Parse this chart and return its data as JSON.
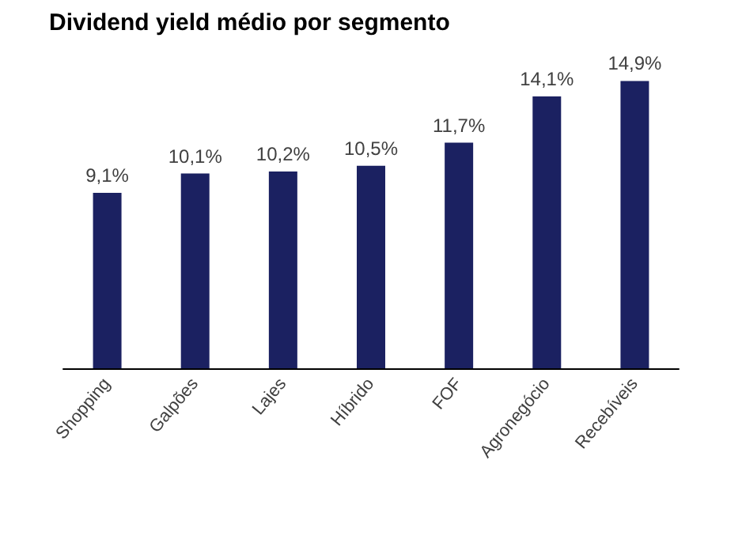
{
  "chart_data": {
    "type": "bar",
    "title": "Dividend yield médio por segmento",
    "categories": [
      "Shopping",
      "Galpões",
      "Lajes",
      "Híbrido",
      "FOF",
      "Agronegócio",
      "Recebíveis"
    ],
    "values": [
      9.1,
      10.1,
      10.2,
      10.5,
      11.7,
      14.1,
      14.9
    ],
    "value_labels": [
      "9,1%",
      "10,1%",
      "10,2%",
      "10,5%",
      "11,7%",
      "14,1%",
      "14,9%"
    ],
    "color": "#1b2161"
  }
}
